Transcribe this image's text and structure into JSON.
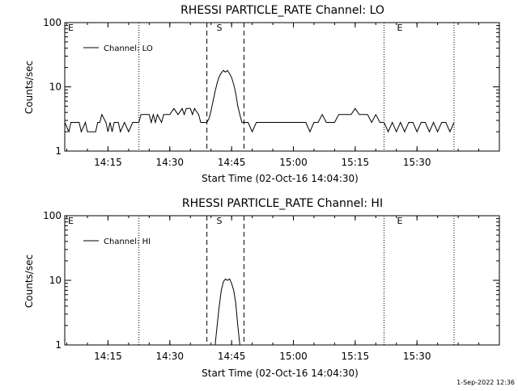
{
  "footer": {
    "timestamp": "1-Sep-2022 12:36"
  },
  "chart_data": [
    {
      "type": "line",
      "title": "RHESSI PARTICLE_RATE Channel: LO",
      "xlabel": "Start Time (02-Oct-16 14:04:30)",
      "ylabel": "Counts/sec",
      "xlim": [
        "14:04:30",
        "15:50:00"
      ],
      "ylim": [
        1,
        100
      ],
      "yscale": "log",
      "xticks": [
        "14:15",
        "14:30",
        "14:45",
        "15:00",
        "15:15",
        "15:30"
      ],
      "yticks": [
        "1",
        "10",
        "100"
      ],
      "legend": {
        "position": "top-left",
        "entries": [
          "Channel: LO"
        ]
      },
      "markers": {
        "dashed": [
          "14:39:00",
          "14:48:00"
        ],
        "dotted": [
          "14:22:30",
          "15:22:00",
          "15:39:00"
        ],
        "letters": [
          {
            "text": "E",
            "x": "14:04:30"
          },
          {
            "text": "S",
            "x": "14:39:00"
          },
          {
            "text": "E",
            "x": "15:22:00"
          }
        ]
      },
      "series": [
        {
          "name": "Channel: LO",
          "color": "#000000",
          "x": [
            "14:04:30",
            "14:05:30",
            "14:06:00",
            "14:08:00",
            "14:08:30",
            "14:09:30",
            "14:10:00",
            "14:12:00",
            "14:12:30",
            "14:13:00",
            "14:13:30",
            "14:14:30",
            "14:15:00",
            "14:15:30",
            "14:16:00",
            "14:16:30",
            "14:17:30",
            "14:18:00",
            "14:19:00",
            "14:20:00",
            "14:21:00",
            "14:22:30",
            "14:23:00",
            "14:24:00",
            "14:25:00",
            "14:25:30",
            "14:26:00",
            "14:26:30",
            "14:27:00",
            "14:28:00",
            "14:28:30",
            "14:29:00",
            "14:30:00",
            "14:31:00",
            "14:32:00",
            "14:33:00",
            "14:33:30",
            "14:34:00",
            "14:35:00",
            "14:35:30",
            "14:36:00",
            "14:37:00",
            "14:37:30",
            "14:38:00",
            "14:39:00",
            "14:39:30",
            "14:40:00",
            "14:40:30",
            "14:41:00",
            "14:41:30",
            "14:42:00",
            "14:42:30",
            "14:43:00",
            "14:43:30",
            "14:44:00",
            "14:44:30",
            "14:45:00",
            "14:45:30",
            "14:46:00",
            "14:46:30",
            "14:47:00",
            "14:47:30",
            "14:48:00",
            "14:49:00",
            "14:50:00",
            "14:51:00",
            "14:52:00",
            "14:53:00",
            "14:54:00",
            "14:55:00",
            "14:56:00",
            "14:57:00",
            "14:58:00",
            "14:59:00",
            "15:00:00",
            "15:01:00",
            "15:02:00",
            "15:03:00",
            "15:04:00",
            "15:05:00",
            "15:06:00",
            "15:07:00",
            "15:08:00",
            "15:09:00",
            "15:10:00",
            "15:11:00",
            "15:12:00",
            "15:13:00",
            "15:14:00",
            "15:15:00",
            "15:16:00",
            "15:17:00",
            "15:18:00",
            "15:19:00",
            "15:20:00",
            "15:21:00",
            "15:22:00",
            "15:23:00",
            "15:24:00",
            "15:25:00",
            "15:26:00",
            "15:27:00",
            "15:28:00",
            "15:29:00",
            "15:30:00",
            "15:31:00",
            "15:32:00",
            "15:33:00",
            "15:34:00",
            "15:35:00",
            "15:36:00",
            "15:37:00",
            "15:38:00",
            "15:39:00"
          ],
          "y": [
            2.8,
            2.0,
            2.8,
            2.8,
            2.0,
            2.8,
            2.0,
            2.0,
            2.8,
            2.8,
            3.7,
            2.8,
            2.0,
            2.8,
            2.0,
            2.8,
            2.8,
            2.0,
            2.8,
            2.0,
            2.8,
            2.8,
            3.7,
            3.7,
            3.7,
            2.8,
            3.7,
            2.8,
            3.7,
            2.8,
            3.7,
            3.7,
            3.7,
            4.6,
            3.7,
            4.6,
            3.7,
            4.6,
            4.6,
            3.7,
            4.6,
            3.7,
            2.8,
            2.8,
            2.8,
            3.2,
            4.2,
            6.0,
            8.5,
            11.5,
            14.5,
            16.5,
            18.0,
            17.0,
            18.0,
            16.0,
            14.0,
            11.0,
            8.0,
            5.0,
            3.7,
            2.8,
            2.8,
            2.8,
            2.0,
            2.8,
            2.8,
            2.8,
            2.8,
            2.8,
            2.8,
            2.8,
            2.8,
            2.8,
            2.8,
            2.8,
            2.8,
            2.8,
            2.0,
            2.8,
            2.8,
            3.7,
            2.8,
            2.8,
            2.8,
            3.7,
            3.7,
            3.7,
            3.7,
            4.6,
            3.7,
            3.7,
            3.7,
            2.8,
            3.7,
            2.8,
            2.8,
            2.0,
            2.8,
            2.0,
            2.8,
            2.0,
            2.8,
            2.8,
            2.0,
            2.8,
            2.8,
            2.0,
            2.8,
            2.0,
            2.8,
            2.8,
            2.0,
            2.8
          ]
        }
      ]
    },
    {
      "type": "line",
      "title": "RHESSI PARTICLE_RATE Channel: HI",
      "xlabel": "Start Time (02-Oct-16 14:04:30)",
      "ylabel": "Counts/sec",
      "xlim": [
        "14:04:30",
        "15:50:00"
      ],
      "ylim": [
        1,
        100
      ],
      "yscale": "log",
      "xticks": [
        "14:15",
        "14:30",
        "14:45",
        "15:00",
        "15:15",
        "15:30"
      ],
      "yticks": [
        "1",
        "10",
        "100"
      ],
      "legend": {
        "position": "top-left",
        "entries": [
          "Channel: HI"
        ]
      },
      "markers": {
        "dashed": [
          "14:39:00",
          "14:48:00"
        ],
        "dotted": [
          "14:22:30",
          "15:22:00",
          "15:39:00"
        ],
        "letters": [
          {
            "text": "E",
            "x": "14:04:30"
          },
          {
            "text": "S",
            "x": "14:39:00"
          },
          {
            "text": "E",
            "x": "15:22:00"
          }
        ]
      },
      "series": [
        {
          "name": "Channel: HI",
          "color": "#000000",
          "x": [
            "14:41:00",
            "14:41:30",
            "14:42:00",
            "14:42:30",
            "14:43:00",
            "14:43:30",
            "14:44:00",
            "14:44:30",
            "14:45:00",
            "14:45:30",
            "14:46:00",
            "14:46:30",
            "14:47:00"
          ],
          "y": [
            1.0,
            2.0,
            4.0,
            7.0,
            9.5,
            10.5,
            10.0,
            10.5,
            9.0,
            7.0,
            4.5,
            2.0,
            1.0
          ]
        }
      ]
    }
  ]
}
